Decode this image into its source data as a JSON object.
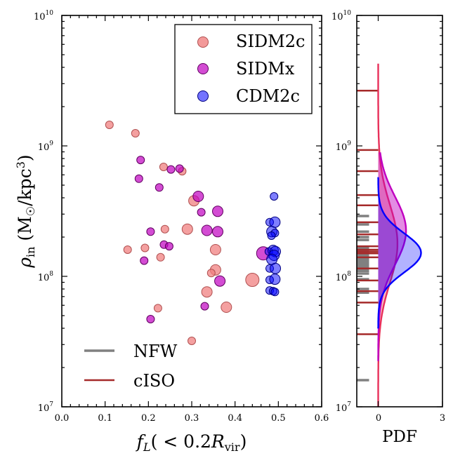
{
  "chart_data": [
    {
      "type": "scatter",
      "xlabel": "f_L(<0.2R_vir)",
      "ylabel": "ρ_in (M_☉/kpc^3)",
      "xlim": [
        0.0,
        0.6
      ],
      "ylim_log10": [
        7,
        10
      ],
      "yscale": "log",
      "x_ticks": [
        "0.0",
        "0.1",
        "0.2",
        "0.3",
        "0.4",
        "0.5",
        "0.6"
      ],
      "y_ticks": [
        {
          "base": "10",
          "exp": "7"
        },
        {
          "base": "10",
          "exp": "8"
        },
        {
          "base": "10",
          "exp": "9"
        },
        {
          "base": "10",
          "exp": "10"
        }
      ],
      "legend": {
        "placement": "top-right",
        "entries": [
          {
            "label": "SIDM2c",
            "color": "#f08080"
          },
          {
            "label": "SIDMx",
            "color": "#c000c0"
          },
          {
            "label": "CDM2c",
            "color": "#0000ff"
          }
        ]
      },
      "line_legend": {
        "placement": "bottom-left",
        "entries": [
          {
            "label": "NFW",
            "color": "#808080"
          },
          {
            "label": "cISO",
            "color": "#a52a2a"
          }
        ]
      },
      "series": [
        {
          "name": "SIDM2c",
          "color": "#f08080",
          "points": [
            {
              "x": 0.11,
              "y": 1450000000.0,
              "size": 1
            },
            {
              "x": 0.17,
              "y": 1250000000.0,
              "size": 1
            },
            {
              "x": 0.235,
              "y": 690000000.0,
              "size": 1
            },
            {
              "x": 0.278,
              "y": 640000000.0,
              "size": 1
            },
            {
              "x": 0.305,
              "y": 380000000.0,
              "size": 2
            },
            {
              "x": 0.238,
              "y": 230000000.0,
              "size": 1
            },
            {
              "x": 0.29,
              "y": 230000000.0,
              "size": 2
            },
            {
              "x": 0.152,
              "y": 160000000.0,
              "size": 1
            },
            {
              "x": 0.192,
              "y": 165000000.0,
              "size": 1
            },
            {
              "x": 0.355,
              "y": 160000000.0,
              "size": 2
            },
            {
              "x": 0.228,
              "y": 140000000.0,
              "size": 1
            },
            {
              "x": 0.355,
              "y": 112000000.0,
              "size": 2
            },
            {
              "x": 0.345,
              "y": 106000000.0,
              "size": 1
            },
            {
              "x": 0.44,
              "y": 94000000.0,
              "size": 3
            },
            {
              "x": 0.335,
              "y": 76000000.0,
              "size": 2
            },
            {
              "x": 0.222,
              "y": 57000000.0,
              "size": 1
            },
            {
              "x": 0.38,
              "y": 58000000.0,
              "size": 2
            },
            {
              "x": 0.3,
              "y": 32000000.0,
              "size": 1
            }
          ]
        },
        {
          "name": "SIDMx",
          "color": "#c000c0",
          "points": [
            {
              "x": 0.182,
              "y": 780000000.0,
              "size": 1
            },
            {
              "x": 0.252,
              "y": 660000000.0,
              "size": 1
            },
            {
              "x": 0.272,
              "y": 670000000.0,
              "size": 1
            },
            {
              "x": 0.178,
              "y": 560000000.0,
              "size": 1
            },
            {
              "x": 0.225,
              "y": 480000000.0,
              "size": 1
            },
            {
              "x": 0.315,
              "y": 410000000.0,
              "size": 2
            },
            {
              "x": 0.322,
              "y": 310000000.0,
              "size": 1
            },
            {
              "x": 0.36,
              "y": 315000000.0,
              "size": 2
            },
            {
              "x": 0.205,
              "y": 220000000.0,
              "size": 1
            },
            {
              "x": 0.335,
              "y": 225000000.0,
              "size": 2
            },
            {
              "x": 0.36,
              "y": 220000000.0,
              "size": 2
            },
            {
              "x": 0.236,
              "y": 175000000.0,
              "size": 1
            },
            {
              "x": 0.248,
              "y": 170000000.0,
              "size": 1
            },
            {
              "x": 0.465,
              "y": 150000000.0,
              "size": 3
            },
            {
              "x": 0.19,
              "y": 132000000.0,
              "size": 1
            },
            {
              "x": 0.365,
              "y": 92000000.0,
              "size": 2
            },
            {
              "x": 0.33,
              "y": 59000000.0,
              "size": 1
            },
            {
              "x": 0.205,
              "y": 47000000.0,
              "size": 1
            }
          ]
        },
        {
          "name": "CDM2c",
          "color": "#0000ff",
          "points": [
            {
              "x": 0.49,
              "y": 410000000.0,
              "size": 1
            },
            {
              "x": 0.48,
              "y": 260000000.0,
              "size": 1
            },
            {
              "x": 0.492,
              "y": 260000000.0,
              "size": 2
            },
            {
              "x": 0.485,
              "y": 220000000.0,
              "size": 2
            },
            {
              "x": 0.492,
              "y": 215000000.0,
              "size": 1
            },
            {
              "x": 0.484,
              "y": 205000000.0,
              "size": 1
            },
            {
              "x": 0.478,
              "y": 155000000.0,
              "size": 1
            },
            {
              "x": 0.488,
              "y": 158000000.0,
              "size": 2
            },
            {
              "x": 0.493,
              "y": 155000000.0,
              "size": 2
            },
            {
              "x": 0.49,
              "y": 145000000.0,
              "size": 2
            },
            {
              "x": 0.485,
              "y": 135000000.0,
              "size": 2
            },
            {
              "x": 0.48,
              "y": 115000000.0,
              "size": 1
            },
            {
              "x": 0.493,
              "y": 115000000.0,
              "size": 2
            },
            {
              "x": 0.48,
              "y": 94000000.0,
              "size": 1
            },
            {
              "x": 0.492,
              "y": 95000000.0,
              "size": 2
            },
            {
              "x": 0.48,
              "y": 78000000.0,
              "size": 1
            },
            {
              "x": 0.488,
              "y": 77000000.0,
              "size": 1
            },
            {
              "x": 0.492,
              "y": 76000000.0,
              "size": 1
            }
          ]
        }
      ]
    },
    {
      "type": "area",
      "xlabel": "PDF",
      "ylim_log10": [
        7,
        10
      ],
      "yscale": "log",
      "xlim": [
        -1,
        3
      ],
      "x_ticks": [
        "0",
        "3"
      ],
      "y_ticks": [
        {
          "base": "10",
          "exp": "7"
        },
        {
          "base": "10",
          "exp": "8"
        },
        {
          "base": "10",
          "exp": "9"
        },
        {
          "base": "10",
          "exp": "10"
        }
      ],
      "nfw_rug_values": [
        290000000.0,
        250000000.0,
        220000000.0,
        200000000.0,
        190000000.0,
        165000000.0,
        160000000.0,
        155000000.0,
        150000000.0,
        145000000.0,
        140000000.0,
        135000000.0,
        130000000.0,
        125000000.0,
        120000000.0,
        115000000.0,
        110000000.0,
        105000000.0,
        95000000.0,
        80000000.0,
        75000000.0,
        16000000.0
      ],
      "ciso_rug_values": [
        2650000000.0,
        930000000.0,
        640000000.0,
        420000000.0,
        350000000.0,
        260000000.0,
        210000000.0,
        170000000.0,
        160000000.0,
        155000000.0,
        150000000.0,
        140000000.0,
        115000000.0,
        93000000.0,
        77000000.0,
        63000000.0,
        36000000.0
      ],
      "series": [
        {
          "name": "SIDM2c",
          "color": "#e8305a",
          "fill": "#f08080",
          "mu_log10": 8.25,
          "sigma_log10": 0.3,
          "peak": 0.9,
          "range_log10": [
            7.0,
            9.63
          ]
        },
        {
          "name": "SIDMx",
          "color": "#c000c0",
          "fill": "#c000c0",
          "mu_log10": 8.35,
          "sigma_log10": 0.26,
          "peak": 1.3,
          "range_log10": [
            7.35,
            8.95
          ]
        },
        {
          "name": "CDM2c",
          "color": "#0000ff",
          "fill": "#0000ff",
          "mu_log10": 8.18,
          "sigma_log10": 0.15,
          "peak": 2.0,
          "range_log10": [
            7.6,
            8.76
          ]
        }
      ]
    }
  ]
}
